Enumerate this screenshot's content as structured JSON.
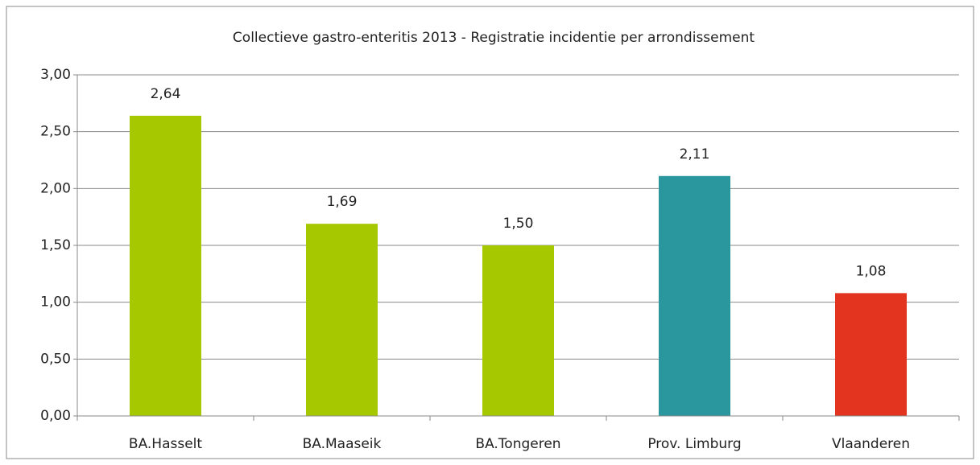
{
  "chart_data": {
    "type": "bar",
    "title": "Collectieve gastro-enteritis 2013 - Registratie incidentie per arrondissement",
    "categories": [
      "BA.Hasselt",
      "BA.Maaseik",
      "BA.Tongeren",
      "Prov. Limburg",
      "Vlaanderen"
    ],
    "values": [
      2.64,
      1.69,
      1.5,
      2.11,
      1.08
    ],
    "value_labels": [
      "2,64",
      "1,69",
      "1,50",
      "2,11",
      "1,08"
    ],
    "colors": [
      "#a5c800",
      "#a5c800",
      "#a5c800",
      "#2a979f",
      "#e2341f"
    ],
    "ylim": [
      0,
      3
    ],
    "yticks": [
      {
        "value": 0,
        "label": "0,00"
      },
      {
        "value": 0.5,
        "label": "0,50"
      },
      {
        "value": 1,
        "label": "1,00"
      },
      {
        "value": 1.5,
        "label": "1,50"
      },
      {
        "value": 2,
        "label": "2,00"
      },
      {
        "value": 2.5,
        "label": "2,50"
      },
      {
        "value": 3,
        "label": "3,00"
      }
    ],
    "grid": true
  }
}
